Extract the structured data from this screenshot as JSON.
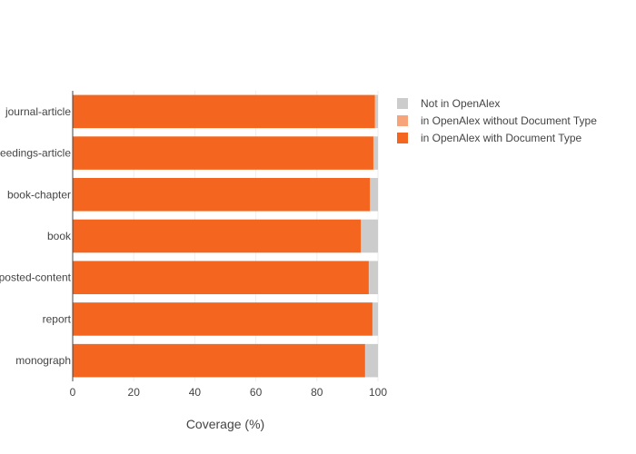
{
  "chart_data": {
    "type": "bar",
    "orientation": "horizontal",
    "stacked": true,
    "categories": [
      "journal-article",
      "proceedings-article",
      "book-chapter",
      "book",
      "posted-content",
      "report",
      "monograph"
    ],
    "series": [
      {
        "name": "in OpenAlex with Document Type",
        "color": "#f4661f",
        "values": [
          99.0,
          98.5,
          97.4,
          94.4,
          97.0,
          98.2,
          95.8
        ]
      },
      {
        "name": "in OpenAlex without Document Type",
        "color": "#f7a47a",
        "values": [
          0.1,
          0.1,
          0.1,
          0.1,
          0.1,
          0.1,
          0.1
        ]
      },
      {
        "name": "Not in OpenAlex",
        "color": "#cccccc",
        "values": [
          0.9,
          1.4,
          2.5,
          5.5,
          2.9,
          1.7,
          4.1
        ]
      }
    ],
    "xlabel": "Coverage (%)",
    "xlim": [
      0,
      100
    ],
    "xticks": [
      0,
      20,
      40,
      60,
      80,
      100
    ],
    "legend_position": "top-right",
    "grid": true
  }
}
